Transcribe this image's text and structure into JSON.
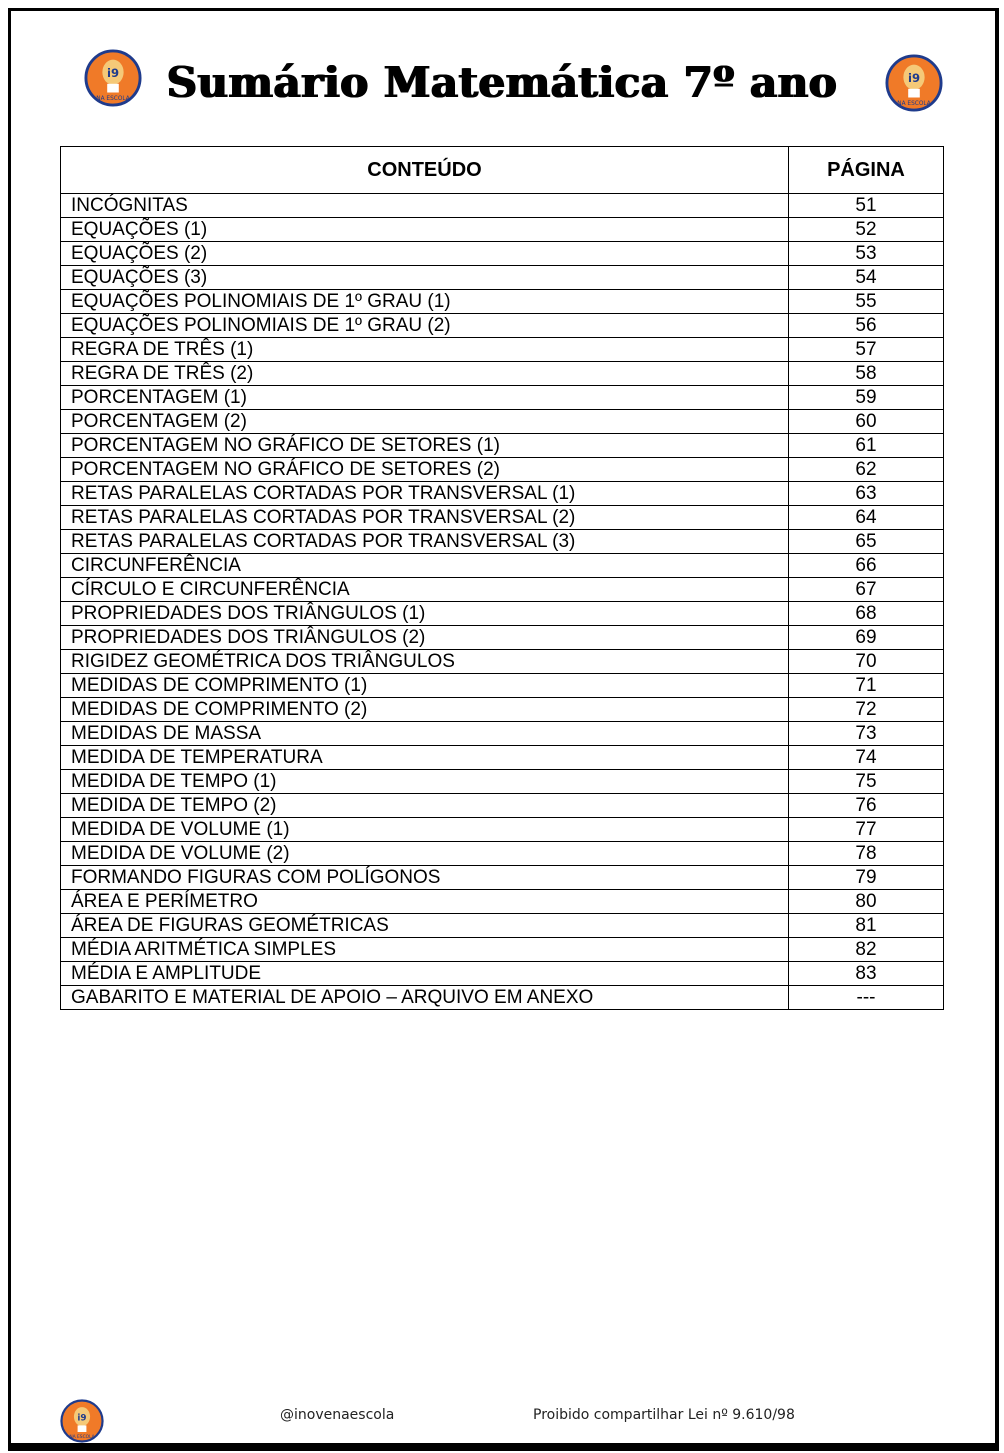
{
  "title": "Sumário Matemática 7º ano",
  "logo": {
    "text_top": "i9",
    "text_bottom": "NA ESCOLA",
    "colors": {
      "fill": "#F07A28",
      "ring": "#1F3B8C",
      "bulb": "#F5C978"
    }
  },
  "table": {
    "headers": [
      "CONTEÚDO",
      "PÁGINA"
    ],
    "rows": [
      [
        "INCÓGNITAS",
        "51"
      ],
      [
        "EQUAÇÕES (1)",
        "52"
      ],
      [
        "EQUAÇÕES (2)",
        "53"
      ],
      [
        "EQUAÇÕES (3)",
        "54"
      ],
      [
        "EQUAÇÕES POLINOMIAIS DE 1º GRAU (1)",
        "55"
      ],
      [
        "EQUAÇÕES POLINOMIAIS DE 1º GRAU (2)",
        "56"
      ],
      [
        "REGRA DE TRÊS (1)",
        "57"
      ],
      [
        "REGRA DE TRÊS (2)",
        "58"
      ],
      [
        "PORCENTAGEM (1)",
        "59"
      ],
      [
        "PORCENTAGEM (2)",
        "60"
      ],
      [
        "PORCENTAGEM NO GRÁFICO DE SETORES (1)",
        "61"
      ],
      [
        "PORCENTAGEM NO GRÁFICO DE SETORES (2)",
        "62"
      ],
      [
        "RETAS PARALELAS CORTADAS POR TRANSVERSAL (1)",
        "63"
      ],
      [
        "RETAS PARALELAS CORTADAS POR TRANSVERSAL (2)",
        "64"
      ],
      [
        "RETAS PARALELAS CORTADAS POR TRANSVERSAL (3)",
        "65"
      ],
      [
        "CIRCUNFERÊNCIA",
        "66"
      ],
      [
        "CÍRCULO E CIRCUNFERÊNCIA",
        "67"
      ],
      [
        "PROPRIEDADES DOS TRIÂNGULOS (1)",
        "68"
      ],
      [
        "PROPRIEDADES DOS TRIÂNGULOS (2)",
        "69"
      ],
      [
        "RIGIDEZ GEOMÉTRICA DOS TRIÂNGULOS",
        "70"
      ],
      [
        "MEDIDAS DE COMPRIMENTO (1)",
        "71"
      ],
      [
        "MEDIDAS DE COMPRIMENTO (2)",
        "72"
      ],
      [
        "MEDIDAS DE MASSA",
        "73"
      ],
      [
        "MEDIDA DE TEMPERATURA",
        "74"
      ],
      [
        "MEDIDA DE TEMPO (1)",
        "75"
      ],
      [
        "MEDIDA DE TEMPO (2)",
        "76"
      ],
      [
        "MEDIDA DE VOLUME (1)",
        "77"
      ],
      [
        "MEDIDA DE VOLUME (2)",
        "78"
      ],
      [
        "FORMANDO FIGURAS COM POLÍGONOS",
        "79"
      ],
      [
        "ÁREA E PERÍMETRO",
        "80"
      ],
      [
        "ÁREA DE FIGURAS GEOMÉTRICAS",
        "81"
      ],
      [
        "MÉDIA ARITMÉTICA SIMPLES",
        "82"
      ],
      [
        "MÉDIA E AMPLITUDE",
        "83"
      ],
      [
        "GABARITO E MATERIAL DE APOIO – ARQUIVO EM ANEXO",
        "---"
      ]
    ]
  },
  "footer": {
    "handle": "@inovenaescola",
    "notice": "Proibido compartilhar Lei nº 9.610/98"
  }
}
